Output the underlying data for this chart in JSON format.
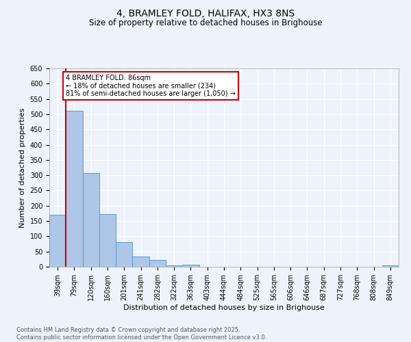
{
  "title": "4, BRAMLEY FOLD, HALIFAX, HX3 8NS",
  "subtitle": "Size of property relative to detached houses in Brighouse",
  "xlabel": "Distribution of detached houses by size in Brighouse",
  "ylabel": "Number of detached properties",
  "categories": [
    "39sqm",
    "79sqm",
    "120sqm",
    "160sqm",
    "201sqm",
    "241sqm",
    "282sqm",
    "322sqm",
    "363sqm",
    "403sqm",
    "444sqm",
    "484sqm",
    "525sqm",
    "565sqm",
    "606sqm",
    "646sqm",
    "687sqm",
    "727sqm",
    "768sqm",
    "808sqm",
    "849sqm"
  ],
  "values": [
    170,
    510,
    308,
    173,
    80,
    33,
    22,
    5,
    6,
    0,
    0,
    0,
    0,
    0,
    0,
    0,
    0,
    0,
    0,
    0,
    5
  ],
  "bar_color": "#aec6e8",
  "bar_edge_color": "#5b9bd5",
  "background_color": "#eef3fb",
  "grid_color": "#ffffff",
  "red_line_x": 1.0,
  "annotation_title": "4 BRAMLEY FOLD: 86sqm",
  "annotation_line1": "← 18% of detached houses are smaller (234)",
  "annotation_line2": "81% of semi-detached houses are larger (1,050) →",
  "annotation_box_color": "#ffffff",
  "annotation_box_edge": "#cc0000",
  "red_line_color": "#cc0000",
  "footer_line1": "Contains HM Land Registry data © Crown copyright and database right 2025.",
  "footer_line2": "Contains public sector information licensed under the Open Government Licence v3.0.",
  "ylim": [
    0,
    650
  ],
  "yticks": [
    0,
    50,
    100,
    150,
    200,
    250,
    300,
    350,
    400,
    450,
    500,
    550,
    600,
    650
  ],
  "title_fontsize": 10,
  "subtitle_fontsize": 8.5,
  "ylabel_fontsize": 8,
  "xlabel_fontsize": 8,
  "tick_fontsize": 7,
  "footer_fontsize": 6,
  "annot_fontsize": 7
}
